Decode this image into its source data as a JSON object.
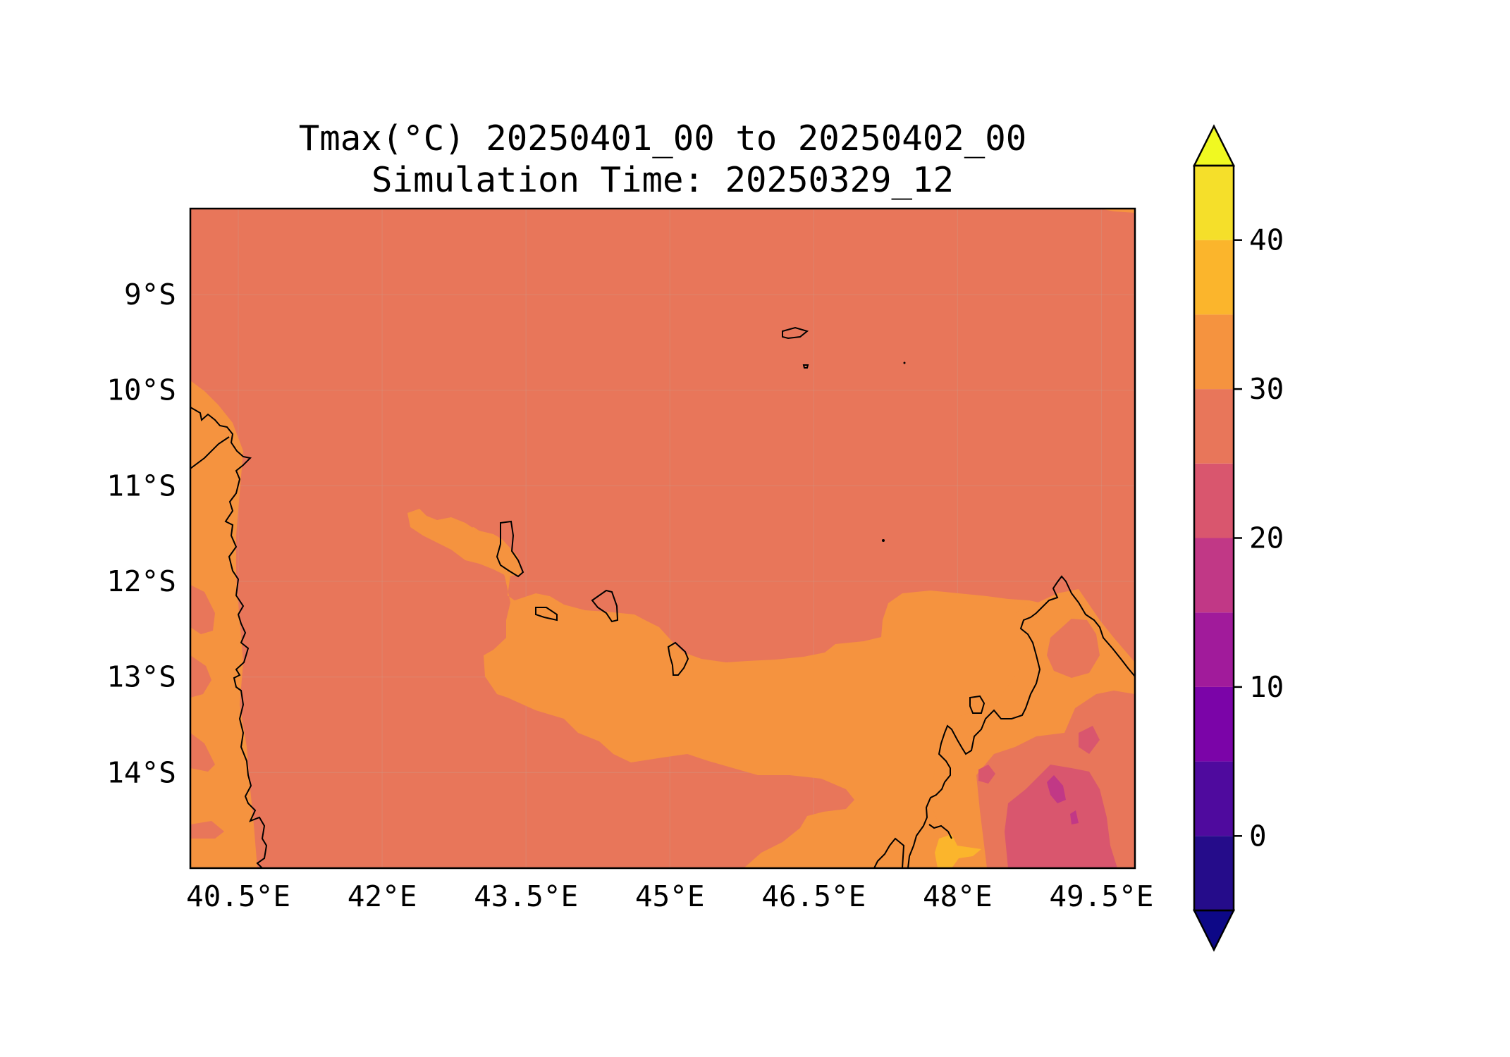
{
  "title": {
    "line1": "Tmax(°C) 20250401_00 to 20250402_00",
    "line2": "Simulation Time: 20250329_12"
  },
  "map": {
    "lon_range": [
      40.0,
      49.85
    ],
    "lat_range": [
      -15.0,
      -8.1
    ],
    "x_ticks": [
      "40.5°E",
      "42°E",
      "43.5°E",
      "45°E",
      "46.5°E",
      "48°E",
      "49.5°E"
    ],
    "x_tick_values": [
      40.5,
      42.0,
      43.5,
      45.0,
      46.5,
      48.0,
      49.5
    ],
    "y_ticks": [
      "9°S",
      "10°S",
      "11°S",
      "12°S",
      "13°S",
      "14°S"
    ],
    "y_tick_values": [
      -9,
      -10,
      -11,
      -12,
      -13,
      -14
    ],
    "gridlines": true,
    "background_class_color": "#e8765a"
  },
  "colorbar": {
    "cmap": "plasma",
    "extend": "both",
    "ticks": [
      "0",
      "10",
      "20",
      "30",
      "40"
    ],
    "tick_values": [
      0,
      10,
      20,
      30,
      40
    ],
    "levels": [
      -5,
      0,
      5,
      10,
      15,
      20,
      25,
      30,
      35,
      40,
      45
    ],
    "colors": [
      "#250c8a",
      "#4f0a9e",
      "#7b04a8",
      "#a11b9b",
      "#c13886",
      "#d9566e",
      "#e8765a",
      "#f5933f",
      "#fbb52c",
      "#f5df2a"
    ],
    "under_color": "#0d0887",
    "over_color": "#f0f921"
  }
}
